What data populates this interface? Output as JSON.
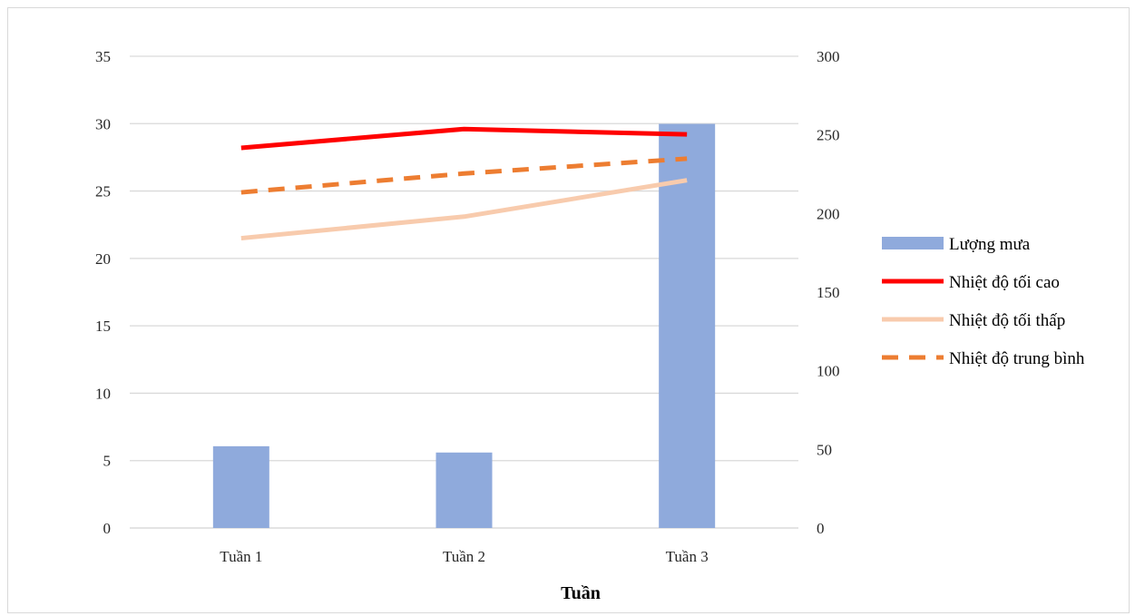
{
  "chart_data": {
    "type": "bar",
    "categories": [
      "Tuần 1",
      "Tuần 2",
      "Tuần 3"
    ],
    "xlabel": "Tuần",
    "ylabel": "",
    "ylabel_right": "",
    "ylim": [
      0,
      35
    ],
    "ylim_right": [
      0,
      300
    ],
    "yticks": [
      "0",
      "5",
      "10",
      "15",
      "20",
      "25",
      "30",
      "35"
    ],
    "yticks_right": [
      "0",
      "50",
      "100",
      "150",
      "200",
      "250",
      "300"
    ],
    "grid": true,
    "legend_position": "right",
    "series": [
      {
        "name": "Lượng mưa",
        "type": "bar",
        "axis": "right",
        "color": "#8faadc",
        "values": [
          52,
          48,
          257
        ]
      },
      {
        "name": "Nhiệt độ tối cao",
        "type": "line",
        "axis": "left",
        "color": "#ff0000",
        "style": "solid",
        "values": [
          28.2,
          29.6,
          29.2
        ]
      },
      {
        "name": "Nhiệt độ tối thấp",
        "type": "line",
        "axis": "left",
        "color": "#f8cbad",
        "style": "solid",
        "values": [
          21.5,
          23.1,
          25.8
        ]
      },
      {
        "name": "Nhiệt độ trung bình",
        "type": "line",
        "axis": "left",
        "color": "#ed7d31",
        "style": "dashed",
        "values": [
          24.9,
          26.3,
          27.4
        ]
      }
    ]
  }
}
